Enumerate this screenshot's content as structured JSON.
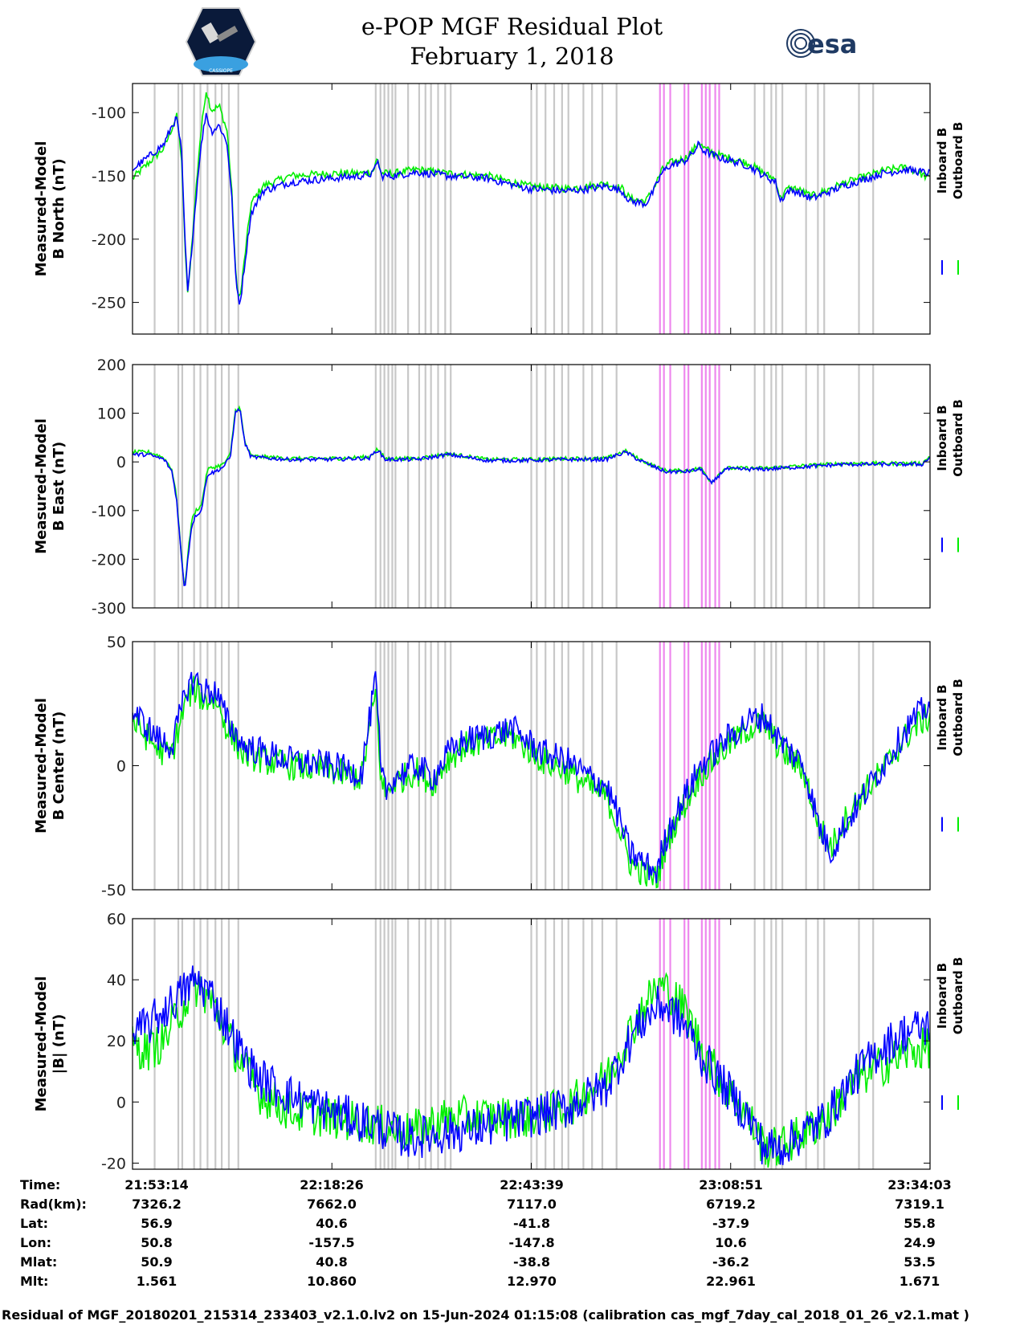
{
  "header": {
    "title_line1": "e-POP MGF Residual Plot",
    "title_line2": "February 1, 2018",
    "logo_left_text": "CASSIOPE",
    "logo_right_text": "esa"
  },
  "colors": {
    "inboard": "#0000ff",
    "outboard": "#00ee00",
    "gray_marker": "#c8c8c8",
    "pink_marker": "#ee88ee"
  },
  "chart_data": {
    "type": "line",
    "x_ticks": [
      "21:53:14",
      "22:18:26",
      "22:43:39",
      "23:08:51",
      "23:34:03"
    ],
    "x_range_minutes": [
      0,
      101
    ],
    "legend": [
      "Inboard B",
      "Outboard B"
    ],
    "gray_markers_min": [
      2.8,
      5.8,
      6.3,
      7.8,
      8.6,
      9.5,
      10.5,
      11.3,
      12.2,
      13.4,
      30.8,
      31.4,
      31.9,
      32.4,
      32.9,
      33.3,
      34.9,
      36.3,
      37.1,
      37.8,
      38.7,
      39.6,
      40.3,
      50.5,
      51.2,
      52.3,
      53.4,
      54.4,
      55.2,
      57.1,
      58.2,
      59.5,
      61.3,
      78.8,
      80.0,
      80.9,
      81.5,
      82.3,
      85.3,
      86.8,
      87.6,
      92.0,
      93.8
    ],
    "pink_markers_min": [
      66.8,
      67.3,
      68.1,
      69.9,
      70.4,
      72.1,
      72.6,
      73.1,
      73.8,
      74.3
    ],
    "panels": [
      {
        "name": "north",
        "ylabel_line1": "Measured-Model",
        "ylabel_line2": "B North (nT)",
        "ylim": [
          -275,
          -77
        ],
        "yticks": [
          -100,
          -150,
          -200,
          -250
        ],
        "noise": 3,
        "series": [
          {
            "name": "Inboard B",
            "x": [
              0,
              2,
              4,
              5,
              5.6,
              6.2,
              6.6,
              7,
              7.8,
              8.5,
              9.3,
              10,
              11,
              12,
              12.6,
              13.1,
              13.6,
              14.2,
              15,
              16.5,
              20,
              25,
              29,
              30.5,
              31,
              31.5,
              33,
              36,
              40,
              45,
              50,
              55,
              58,
              60,
              62,
              63,
              65,
              66,
              67,
              68,
              70,
              71,
              71.7,
              72.3,
              74,
              78,
              80,
              81.5,
              82,
              83,
              84,
              86,
              90,
              95,
              98,
              101
            ],
            "y": [
              -145,
              -135,
              -125,
              -110,
              -105,
              -130,
              -195,
              -243,
              -185,
              -135,
              -100,
              -115,
              -110,
              -125,
              -170,
              -235,
              -252,
              -220,
              -180,
              -162,
              -155,
              -152,
              -150,
              -148,
              -137,
              -150,
              -150,
              -147,
              -150,
              -152,
              -160,
              -162,
              -160,
              -158,
              -162,
              -170,
              -172,
              -162,
              -148,
              -142,
              -138,
              -132,
              -125,
              -130,
              -135,
              -142,
              -150,
              -155,
              -170,
              -162,
              -162,
              -168,
              -158,
              -148,
              -145,
              -148
            ]
          },
          {
            "name": "Outboard B",
            "x": [
              0,
              2,
              4,
              5,
              5.6,
              6.2,
              6.6,
              7,
              7.8,
              8.5,
              9.3,
              10,
              11,
              12,
              12.6,
              13.1,
              13.6,
              14.2,
              15,
              16.5,
              20,
              25,
              29,
              30.5,
              31,
              31.5,
              33,
              36,
              40,
              45,
              50,
              55,
              58,
              60,
              62,
              63,
              65,
              66,
              67,
              68,
              70,
              71,
              71.7,
              72.3,
              74,
              78,
              80,
              81.5,
              82,
              83,
              84,
              86,
              90,
              95,
              98,
              101
            ],
            "y": [
              -152,
              -140,
              -128,
              -112,
              -103,
              -135,
              -200,
              -245,
              -180,
              -125,
              -82,
              -98,
              -95,
              -115,
              -165,
              -232,
              -248,
              -215,
              -172,
              -158,
              -150,
              -148,
              -148,
              -146,
              -136,
              -148,
              -148,
              -145,
              -148,
              -150,
              -158,
              -160,
              -158,
              -156,
              -160,
              -168,
              -170,
              -160,
              -146,
              -140,
              -136,
              -130,
              -123,
              -128,
              -133,
              -140,
              -148,
              -153,
              -168,
              -160,
              -160,
              -166,
              -156,
              -146,
              -143,
              -152
            ]
          }
        ]
      },
      {
        "name": "east",
        "ylabel_line1": "Measured-Model",
        "ylabel_line2": "B East (nT)",
        "ylim": [
          -300,
          200
        ],
        "yticks": [
          200,
          100,
          0,
          -100,
          -200,
          -300
        ],
        "noise": 4,
        "series": [
          {
            "name": "Inboard B",
            "x": [
              0,
              2,
              3,
              4,
              5,
              5.6,
              6.1,
              6.6,
              7,
              7.5,
              8,
              8.7,
              9.5,
              10.5,
              11.5,
              12.4,
              13,
              13.6,
              14.2,
              15,
              20,
              25,
              30,
              31,
              32,
              34,
              36,
              40,
              45,
              50,
              55,
              60,
              61.5,
              62.5,
              64,
              66,
              67.5,
              70,
              72,
              73.3,
              75,
              80,
              85,
              90,
              95,
              100,
              101
            ],
            "y": [
              15,
              15,
              10,
              5,
              -20,
              -80,
              -180,
              -265,
              -200,
              -130,
              -110,
              -100,
              -25,
              -20,
              -10,
              10,
              100,
              110,
              40,
              10,
              5,
              5,
              8,
              25,
              5,
              5,
              5,
              15,
              3,
              3,
              5,
              5,
              15,
              20,
              5,
              -10,
              -20,
              -20,
              -15,
              -45,
              -15,
              -15,
              -10,
              -5,
              -5,
              -5,
              10
            ]
          },
          {
            "name": "Outboard B",
            "x": [
              0,
              2,
              3,
              4,
              5,
              5.6,
              6.1,
              6.6,
              7,
              7.5,
              8,
              8.7,
              9.5,
              10.5,
              11.5,
              12.4,
              13,
              13.6,
              14.2,
              15,
              20,
              25,
              30,
              31,
              32,
              34,
              36,
              40,
              45,
              50,
              55,
              60,
              61.5,
              62.5,
              64,
              66,
              67.5,
              70,
              72,
              73.3,
              75,
              80,
              85,
              90,
              95,
              100,
              101
            ],
            "y": [
              20,
              20,
              15,
              8,
              -15,
              -75,
              -175,
              -262,
              -190,
              -120,
              -100,
              -90,
              -15,
              -10,
              -5,
              15,
              105,
              112,
              42,
              12,
              7,
              7,
              10,
              27,
              7,
              7,
              7,
              17,
              5,
              5,
              7,
              7,
              17,
              22,
              7,
              -8,
              -18,
              -18,
              -13,
              -42,
              -13,
              -13,
              -8,
              -3,
              -3,
              -3,
              12
            ]
          }
        ]
      },
      {
        "name": "center",
        "ylabel_line1": "Measured-Model",
        "ylabel_line2": "B Center (nT)",
        "ylim": [
          -50,
          50
        ],
        "yticks": [
          50,
          0,
          -50
        ],
        "noise": 6,
        "series": [
          {
            "name": "Inboard B",
            "x": [
              0,
              2,
              3.5,
              5,
              6,
              7,
              8,
              9,
              10.5,
              12,
              14,
              17,
              20,
              25,
              29,
              30.8,
              31.5,
              32.2,
              33,
              36,
              38,
              40,
              42,
              45,
              48,
              50,
              52,
              55,
              58,
              60,
              61.5,
              63,
              65,
              66.5,
              67,
              68,
              70,
              72,
              75,
              78,
              80,
              82,
              85,
              87,
              88.5,
              90,
              92,
              95,
              98,
              100,
              101
            ],
            "y": [
              22,
              15,
              10,
              8,
              20,
              32,
              35,
              30,
              30,
              18,
              8,
              5,
              2,
              0,
              -3,
              35,
              -5,
              -10,
              -5,
              0,
              -5,
              5,
              10,
              12,
              15,
              10,
              5,
              2,
              -5,
              -8,
              -20,
              -35,
              -40,
              -43,
              -35,
              -25,
              -12,
              0,
              10,
              18,
              20,
              10,
              0,
              -25,
              -35,
              -25,
              -15,
              0,
              15,
              22,
              25
            ]
          },
          {
            "name": "Outboard B",
            "x": [
              0,
              2,
              3.5,
              5,
              6,
              7,
              8,
              9,
              10.5,
              12,
              14,
              17,
              20,
              25,
              29,
              30.8,
              31.5,
              32.2,
              33,
              36,
              38,
              40,
              42,
              45,
              48,
              50,
              52,
              55,
              58,
              60,
              61.5,
              63,
              65,
              66.5,
              67,
              68,
              70,
              72,
              75,
              78,
              80,
              82,
              85,
              87,
              88.5,
              90,
              92,
              95,
              98,
              100,
              101
            ],
            "y": [
              18,
              11,
              6,
              5,
              17,
              28,
              31,
              26,
              27,
              15,
              5,
              2,
              0,
              -2,
              -5,
              30,
              -7,
              -12,
              -7,
              -2,
              -7,
              3,
              8,
              10,
              12,
              7,
              2,
              -2,
              -9,
              -12,
              -24,
              -39,
              -44,
              -46,
              -38,
              -28,
              -15,
              -3,
              7,
              15,
              17,
              7,
              -2,
              -25,
              -33,
              -23,
              -13,
              -2,
              12,
              18,
              20
            ]
          }
        ]
      },
      {
        "name": "total",
        "ylabel_line1": "Measured-Model",
        "ylabel_line2": "|B| (nT)",
        "ylim": [
          -22,
          60
        ],
        "yticks": [
          60,
          40,
          20,
          0,
          -20
        ],
        "noise": 7,
        "series": [
          {
            "name": "Inboard B",
            "x": [
              0,
              2,
              4,
              6,
              8,
              10,
              12,
              14,
              16,
              20,
              25,
              30,
              35,
              40,
              45,
              50,
              55,
              60,
              62,
              64,
              66,
              67,
              68,
              70,
              72,
              75,
              78,
              80,
              82,
              85,
              88,
              90,
              92,
              95,
              98,
              101
            ],
            "y": [
              22,
              25,
              30,
              35,
              40,
              35,
              25,
              15,
              8,
              2,
              -3,
              -7,
              -12,
              -10,
              -8,
              -5,
              -2,
              5,
              15,
              25,
              30,
              32,
              30,
              25,
              15,
              5,
              -5,
              -15,
              -15,
              -10,
              -5,
              3,
              10,
              18,
              23,
              25
            ]
          },
          {
            "name": "Outboard B",
            "x": [
              0,
              2,
              4,
              6,
              8,
              10,
              12,
              14,
              16,
              20,
              25,
              30,
              35,
              40,
              45,
              50,
              55,
              60,
              62,
              64,
              66,
              67,
              68,
              70,
              72,
              75,
              78,
              80,
              82,
              85,
              88,
              90,
              92,
              95,
              98,
              101
            ],
            "y": [
              18,
              17,
              20,
              30,
              38,
              33,
              22,
              12,
              3,
              -3,
              -5,
              -7,
              -10,
              -5,
              -5,
              -5,
              -2,
              8,
              18,
              28,
              36,
              38,
              36,
              30,
              18,
              5,
              -5,
              -15,
              -15,
              -10,
              -5,
              2,
              8,
              12,
              16,
              18
            ]
          }
        ]
      }
    ]
  },
  "info_table": {
    "row_labels": [
      "Time:",
      "Rad(km):",
      "Lat:",
      "Lon:",
      "Mlat:",
      "Mlt:"
    ],
    "columns": [
      {
        "time": "21:53:14",
        "rad": "7326.2",
        "lat": "56.9",
        "lon": "50.8",
        "mlat": "50.9",
        "mlt": "1.561"
      },
      {
        "time": "22:18:26",
        "rad": "7662.0",
        "lat": "40.6",
        "lon": "-157.5",
        "mlat": "40.8",
        "mlt": "10.860"
      },
      {
        "time": "22:43:39",
        "rad": "7117.0",
        "lat": "-41.8",
        "lon": "-147.8",
        "mlat": "-38.8",
        "mlt": "12.970"
      },
      {
        "time": "23:08:51",
        "rad": "6719.2",
        "lat": "-37.9",
        "lon": "10.6",
        "mlat": "-36.2",
        "mlt": "22.961"
      },
      {
        "time": "23:34:03",
        "rad": "7319.1",
        "lat": "55.8",
        "lon": "24.9",
        "mlat": "53.5",
        "mlt": "1.671"
      }
    ]
  },
  "footer": {
    "text": "Residual of MGF_20180201_215314_233403_v2.1.0.lv2 on 15-Jun-2024 01:15:08 (calibration cas_mgf_7day_cal_2018_01_26_v2.1.mat )"
  }
}
